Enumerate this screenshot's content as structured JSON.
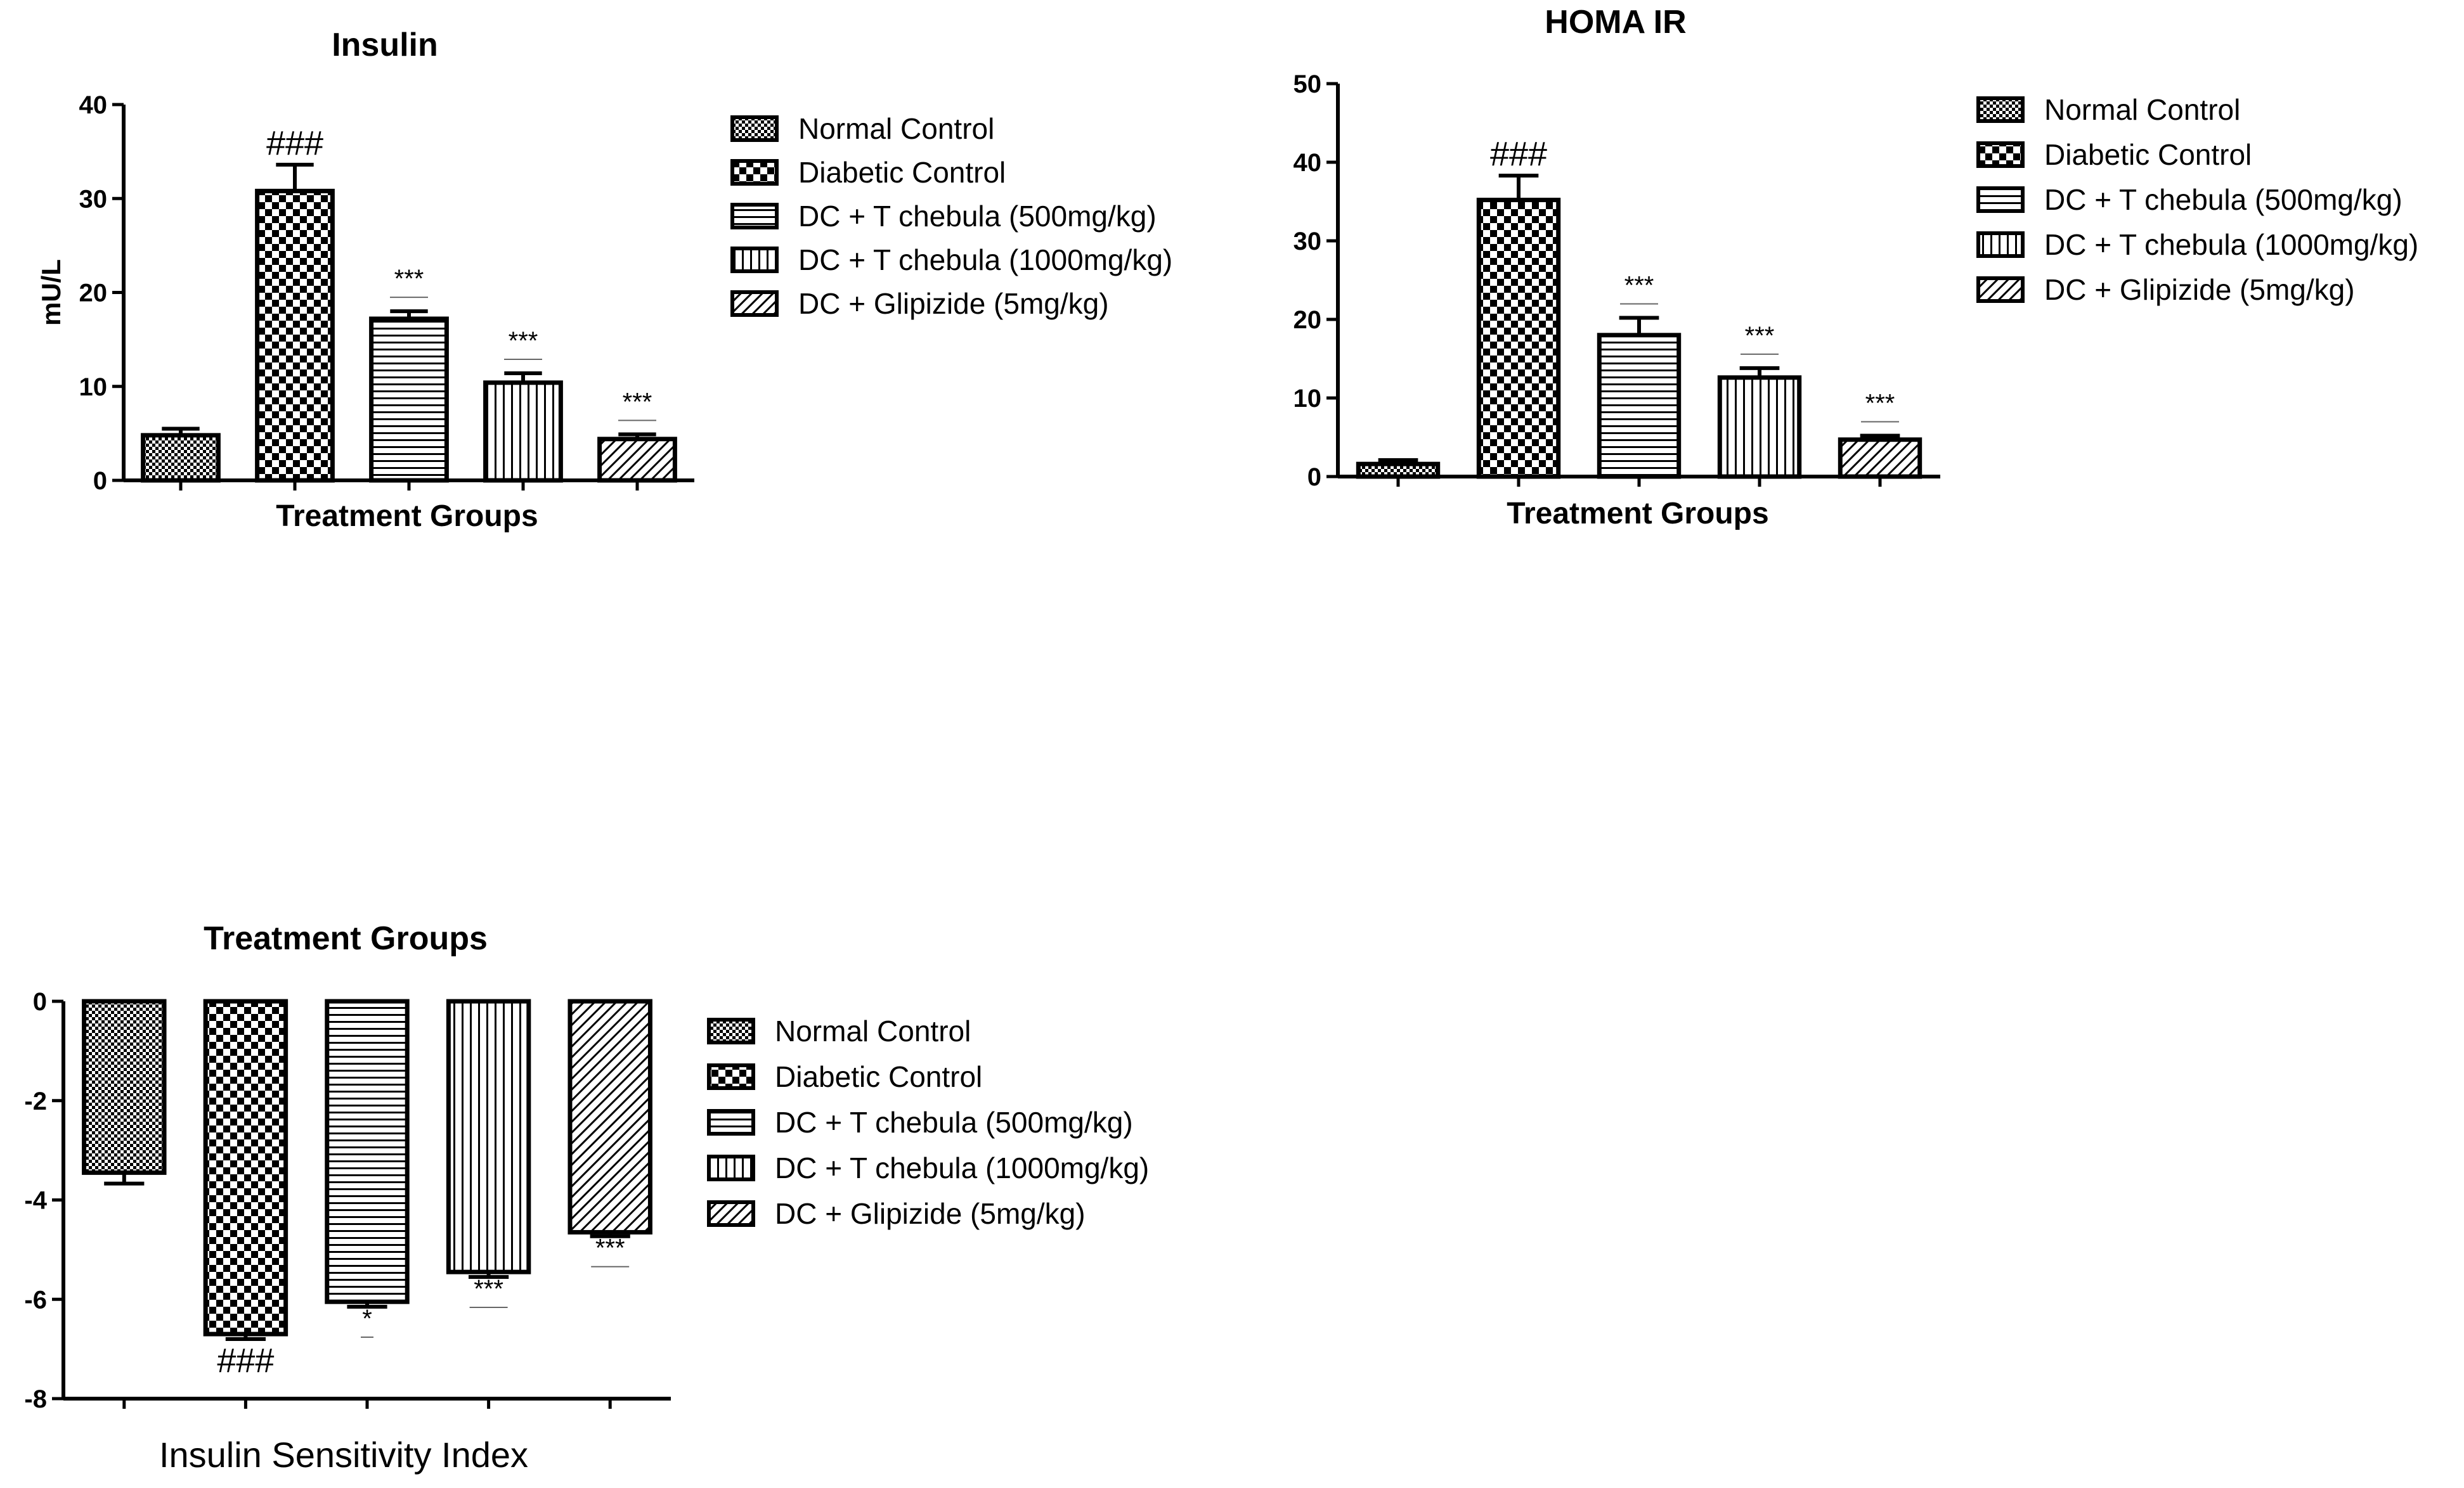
{
  "chart_data": [
    {
      "id": "insulin",
      "type": "bar",
      "title": "Insulin",
      "xlabel": "Treatment Groups",
      "ylabel": "mU/L",
      "ylim": [
        0,
        40
      ],
      "yticks": [
        0,
        10,
        20,
        30,
        40
      ],
      "categories": [
        "Normal Control",
        "Diabetic Control",
        "DC + T chebula (500mg/kg)",
        "DC + T chebula (1000mg/kg)",
        "DC + Glipizide (5mg/kg)"
      ],
      "values": [
        4.8,
        30.8,
        17.2,
        10.4,
        4.4
      ],
      "errors": [
        0.7,
        2.8,
        0.8,
        1.0,
        0.5
      ],
      "significance": [
        "",
        "###",
        "***",
        "***",
        "***"
      ],
      "legend": [
        "Normal Control",
        "Diabetic Control",
        "DC + T chebula (500mg/kg)",
        "DC + T chebula (1000mg/kg)",
        "DC + Glipizide (5mg/kg)"
      ],
      "legend_position": "right",
      "grid": false
    },
    {
      "id": "homa",
      "type": "bar",
      "title": "HOMA IR",
      "xlabel": "Treatment Groups",
      "ylabel": "",
      "ylim": [
        0,
        50
      ],
      "yticks": [
        0,
        10,
        20,
        30,
        40,
        50
      ],
      "categories": [
        "Normal Control",
        "Diabetic Control",
        "DC + T chebula (500mg/kg)",
        "DC + T chebula (1000mg/kg)",
        "DC + Glipizide (5mg/kg)"
      ],
      "values": [
        1.6,
        35.2,
        18.0,
        12.6,
        4.7
      ],
      "errors": [
        0.5,
        3.1,
        2.2,
        1.2,
        0.5
      ],
      "significance": [
        "",
        "###",
        "***",
        "***",
        "***"
      ],
      "legend": [
        "Normal Control",
        "Diabetic Control",
        "DC + T chebula (500mg/kg)",
        "DC + T chebula (1000mg/kg)",
        "DC + Glipizide (5mg/kg)"
      ],
      "legend_position": "right",
      "grid": false
    },
    {
      "id": "isi",
      "type": "bar",
      "title": "Treatment Groups",
      "xlabel": "Insulin  Sensitivity Index",
      "ylabel": "",
      "ylim": [
        -8,
        0
      ],
      "yticks": [
        0,
        -2,
        -4,
        -6,
        -8
      ],
      "categories": [
        "Normal Control",
        "Diabetic Control",
        "DC + T chebula (500mg/kg)",
        "DC + T chebula (1000mg/kg)",
        "DC + Glipizide (5mg/kg)"
      ],
      "values": [
        -3.45,
        -6.7,
        -6.05,
        -5.45,
        -4.65
      ],
      "errors": [
        0.22,
        0.1,
        0.1,
        0.1,
        0.08
      ],
      "significance": [
        "",
        "###",
        "*",
        "***",
        "***"
      ],
      "legend": [
        "Normal Control",
        "Diabetic Control",
        "DC + T chebula (500mg/kg)",
        "DC + T chebula (1000mg/kg)",
        "DC + Glipizide (5mg/kg)"
      ],
      "legend_position": "right",
      "grid": false
    }
  ]
}
